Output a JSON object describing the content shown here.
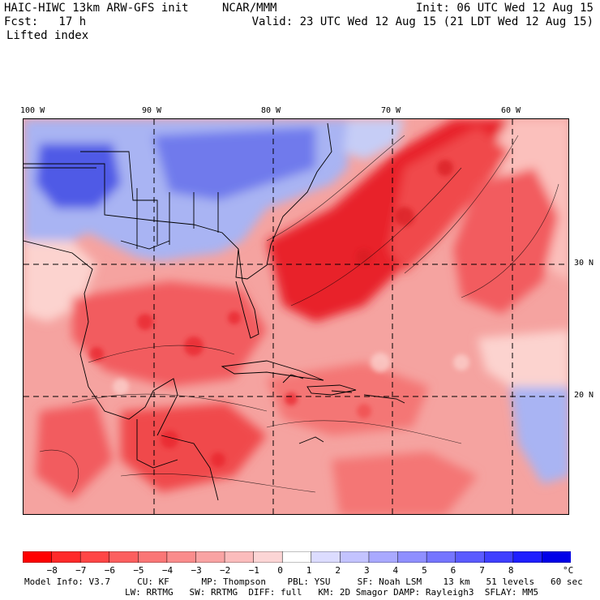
{
  "header": {
    "model_title": "HAIC-HIWC 13km ARW-GFS init",
    "org": "NCAR/MMM",
    "init": "Init: 06 UTC Wed 12 Aug 15",
    "fcst": "Fcst:   17 h",
    "valid": "Valid: 23 UTC Wed 12 Aug 15 (21 LDT Wed 12 Aug 15)",
    "field": "Lifted index"
  },
  "map": {
    "longitude_labels": [
      "100 W",
      "90 W",
      "80 W",
      "70 W",
      "60 W"
    ],
    "latitude_labels": [
      "30 N",
      "20 N"
    ],
    "colors": {
      "strong_warm": "#e8202a",
      "warm": "#f25c5e",
      "mild_warm": "#f5a3a0",
      "neutral": "#fce6e2",
      "cool": "#a9b4f3",
      "cold": "#4f5ae6"
    }
  },
  "colorbar": {
    "labels": [
      "−8",
      "−7",
      "−6",
      "−5",
      "−4",
      "−3",
      "−2",
      "−1",
      "0",
      "1",
      "2",
      "3",
      "4",
      "5",
      "6",
      "7",
      "8"
    ],
    "unit": "°C",
    "colors": [
      "#ff0000",
      "#ff2a2a",
      "#ff4646",
      "#fc5f5f",
      "#fa7676",
      "#fa8c8c",
      "#f9a3a3",
      "#fbbcbc",
      "#fcd5d5",
      "#ffffff",
      "#dcdcff",
      "#c3c3ff",
      "#a9a9ff",
      "#8f8fff",
      "#7575ff",
      "#5b5bff",
      "#3f3fff",
      "#1f1fff",
      "#0000e8"
    ]
  },
  "footer": {
    "line1": "Model Info: V3.7     CU: KF      MP: Thompson    PBL: YSU     SF: Noah LSM    13 km   51 levels   60 sec",
    "line2": "LW: RRTMG   SW: RRTMG  DIFF: full   KM: 2D Smagor DAMP: Rayleigh3  SFLAY: MM5"
  }
}
